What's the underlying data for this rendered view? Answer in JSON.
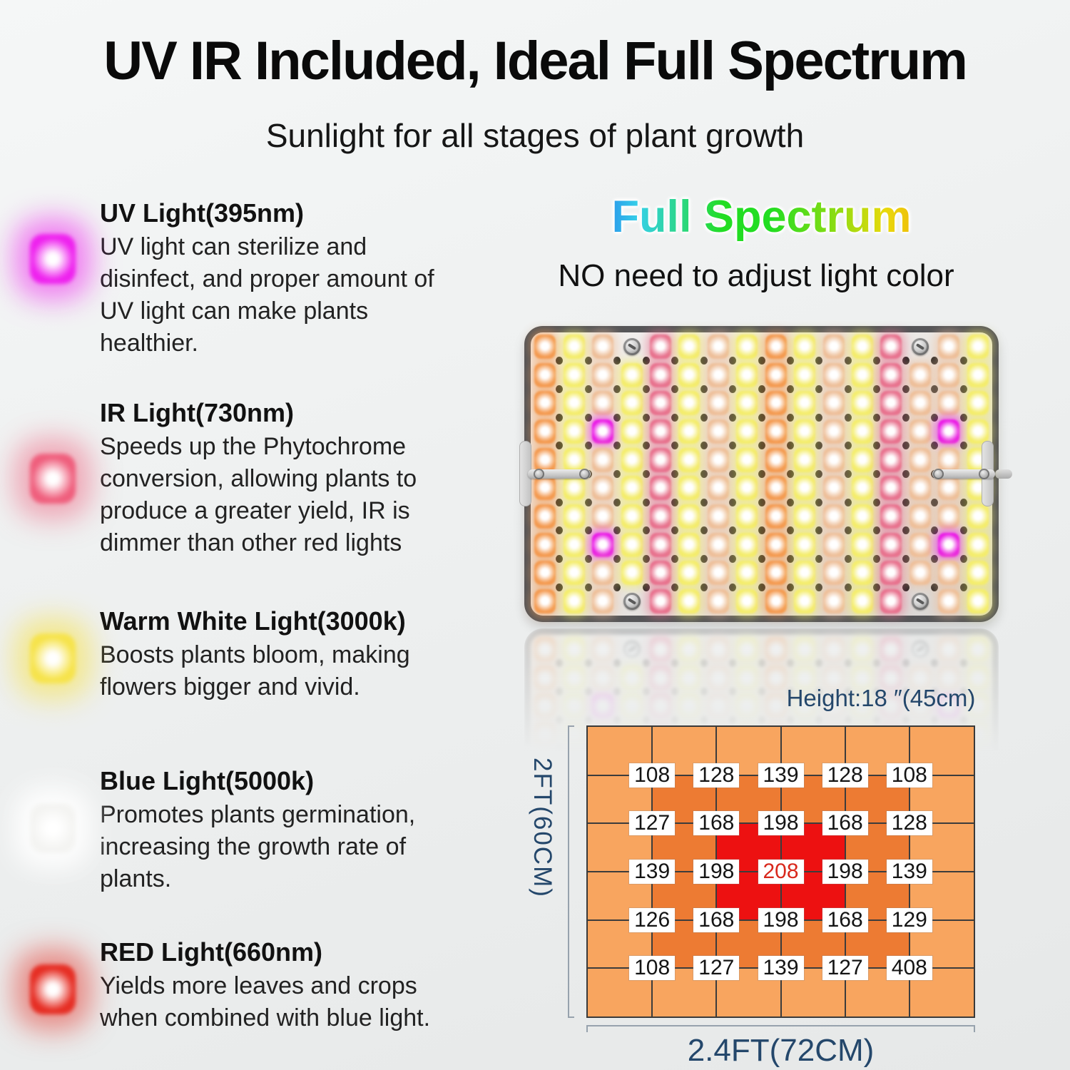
{
  "header": {
    "title": "UV IR Included, Ideal Full Spectrum",
    "subtitle": "Sunlight for all stages of plant growth"
  },
  "light_types": [
    {
      "name": "UV Light(395nm)",
      "description": "UV light can sterilize and disinfect, and proper amount of UV light can make plants healthier.",
      "color_main": "#ee22ee",
      "color_glow": "rgba(238,34,238,0.55)"
    },
    {
      "name": "IR Light(730nm)",
      "description": "Speeds up the Phytochrome conversion, allowing plants to produce a greater yield, IR is dimmer than other red lights",
      "color_main": "#ef5f7d",
      "color_glow": "rgba(239,95,125,0.5)"
    },
    {
      "name": "Warm White Light(3000k)",
      "description": "Boosts plants bloom, making flowers bigger and vivid.",
      "color_main": "#f6e34c",
      "color_glow": "rgba(246,227,76,0.6)"
    },
    {
      "name": "Blue Light(5000k)",
      "description": "Promotes plants germination, increasing the growth rate of plants.",
      "color_main": "#f4f4f2",
      "color_glow": "rgba(255,255,255,0.95)"
    },
    {
      "name": "RED Light(660nm)",
      "description": "Yields more leaves and crops when combined with blue light.",
      "color_main": "#e62e24",
      "color_glow": "rgba(230,46,36,0.5)"
    }
  ],
  "spectrum": {
    "headline": "Full Spectrum",
    "subheadline": "NO need to adjust light color",
    "gradient_colors": [
      "#1a3bf0",
      "#35d0e8",
      "#22dd22",
      "#8fdc12",
      "#e8d90c",
      "#f5a90a",
      "#ee2a08"
    ]
  },
  "panel": {
    "rows": 10,
    "column_pattern": [
      "O",
      "Y",
      "T",
      "Y",
      "P",
      "Y",
      "T",
      "Y",
      "O",
      "Y",
      "T",
      "Y",
      "P",
      "T",
      "T",
      "Y"
    ],
    "magenta_positions": [
      [
        4,
        3
      ],
      [
        8,
        3
      ],
      [
        4,
        15
      ],
      [
        8,
        15
      ]
    ],
    "screw_positions": [
      [
        1,
        4
      ],
      [
        1,
        14
      ],
      [
        10,
        4
      ],
      [
        10,
        14
      ]
    ],
    "led_colors": {
      "O": {
        "main": "#f49b52",
        "glow": "rgba(244,155,82,0.55)"
      },
      "T": {
        "main": "#eec09b",
        "glow": "rgba(238,192,155,0.55)"
      },
      "Y": {
        "main": "#f4ed6d",
        "glow": "rgba(244,237,109,0.6)"
      },
      "P": {
        "main": "#e8738f",
        "glow": "rgba(232,115,143,0.55)"
      },
      "M": {
        "main": "#ea1ce6",
        "glow": "rgba(234,28,230,0.6)"
      }
    }
  },
  "heatmap": {
    "height_label": "Height:18 ″(45cm)",
    "ylabel": "2FT(60CM)",
    "xlabel": "2.4FT(72CM)"
  },
  "chart_data": {
    "type": "heatmap",
    "title": "Height:18 ″(45cm)",
    "xlabel": "2.4FT(72CM)",
    "ylabel": "2FT(60CM)",
    "grid_rows": 6,
    "grid_cols": 6,
    "values": [
      [
        108,
        128,
        139,
        128,
        108
      ],
      [
        127,
        168,
        198,
        168,
        128
      ],
      [
        139,
        198,
        208,
        198,
        139
      ],
      [
        126,
        168,
        198,
        168,
        129
      ],
      [
        108,
        127,
        139,
        127,
        408
      ]
    ],
    "highlight_value": 208,
    "highlight_color": "#d8281c",
    "zone_colors": {
      "outer": "#f8a55f",
      "middle": "#ed7b33",
      "center": "#ed1111"
    },
    "legend_position": "none",
    "grid": true
  }
}
